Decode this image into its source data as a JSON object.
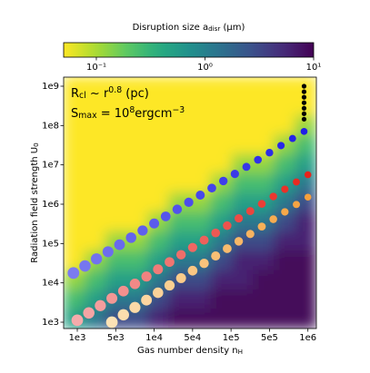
{
  "chart_data": {
    "type": "heatmap",
    "colorbar_label": [
      {
        "text": "Disruption size a"
      },
      {
        "text": "disr",
        "script": "sub"
      },
      {
        "text": " (μm)"
      }
    ],
    "xlabel": [
      {
        "text": "Gas number density n"
      },
      {
        "text": "H",
        "script": "sub"
      }
    ],
    "ylabel": [
      {
        "text": "Radiation field strength U"
      },
      {
        "text": "0",
        "script": "sub"
      }
    ],
    "annotations": [
      [
        {
          "text": "R"
        },
        {
          "text": "cl",
          "script": "sub"
        },
        {
          "text": " ~ r"
        },
        {
          "text": "0.8",
          "script": "sup"
        },
        {
          "text": " (pc)"
        }
      ],
      [
        {
          "text": "S"
        },
        {
          "text": "max",
          "script": "sub"
        },
        {
          "text": " = 10"
        },
        {
          "text": "8",
          "script": "sup"
        },
        {
          "text": "ergcm"
        },
        {
          "text": "−3",
          "script": "sup"
        }
      ]
    ],
    "colormap": "viridis_r",
    "clim": [
      0.05,
      10
    ],
    "cticks": [
      {
        "value": 0.1,
        "label": "10⁻¹"
      },
      {
        "value": 1,
        "label": "10⁰"
      },
      {
        "value": 10,
        "label": "10¹"
      }
    ],
    "xlim": [
      -0.355,
      6.22
    ],
    "xticks": [
      {
        "value": 0,
        "label": "1e3"
      },
      {
        "value": 1,
        "label": "5e3"
      },
      {
        "value": 2,
        "label": "1e4"
      },
      {
        "value": 3,
        "label": "5e4"
      },
      {
        "value": 4,
        "label": "1e5"
      },
      {
        "value": 5,
        "label": "5e5"
      },
      {
        "value": 6,
        "label": "1e6"
      }
    ],
    "ylog": true,
    "ylim": [
      690,
      1700000000.0
    ],
    "yticks": [
      {
        "value": 1000,
        "label": "1e3"
      },
      {
        "value": 10000,
        "label": "1e4"
      },
      {
        "value": 100000,
        "label": "1e5"
      },
      {
        "value": 1000000,
        "label": "1e6"
      },
      {
        "value": 10000000,
        "label": "1e7"
      },
      {
        "value": 100000000,
        "label": "1e8"
      },
      {
        "value": 1000000000,
        "label": "1e9"
      }
    ],
    "heatmap": {
      "z": [
        [
          0.05,
          0.05,
          0.05,
          0.05,
          0.05,
          0.05,
          0.05,
          0.05,
          0.05,
          0.05,
          0.05,
          0.05
        ],
        [
          0.05,
          0.05,
          0.05,
          0.05,
          0.05,
          0.05,
          0.05,
          0.05,
          0.05,
          0.05,
          0.05,
          0.05
        ],
        [
          0.05,
          0.05,
          0.05,
          0.05,
          0.05,
          0.05,
          0.05,
          0.05,
          0.05,
          0.05,
          0.05,
          0.12
        ],
        [
          0.05,
          0.05,
          0.05,
          0.05,
          0.05,
          0.05,
          0.05,
          0.05,
          0.05,
          0.05,
          0.12,
          0.25
        ],
        [
          0.05,
          0.05,
          0.05,
          0.05,
          0.05,
          0.05,
          0.05,
          0.05,
          0.12,
          0.12,
          0.25,
          0.5
        ],
        [
          0.05,
          0.05,
          0.05,
          0.05,
          0.05,
          0.05,
          0.05,
          0.12,
          0.25,
          0.25,
          0.5,
          1.2
        ],
        [
          0.05,
          0.05,
          0.05,
          0.05,
          0.05,
          0.12,
          0.12,
          0.25,
          0.5,
          0.5,
          1.2,
          3
        ],
        [
          0.05,
          0.05,
          0.05,
          0.05,
          0.12,
          0.25,
          0.25,
          0.5,
          1.2,
          1.2,
          3,
          6
        ],
        [
          0.05,
          0.05,
          0.12,
          0.12,
          0.25,
          0.5,
          0.5,
          1.2,
          3,
          3,
          6,
          6
        ],
        [
          0.05,
          0.12,
          0.25,
          0.25,
          0.5,
          1.2,
          1.2,
          3,
          6,
          6,
          9,
          9
        ],
        [
          0.12,
          0.25,
          0.5,
          0.5,
          1.2,
          3,
          3,
          6,
          6,
          9,
          9,
          9
        ],
        [
          0.25,
          0.5,
          1.2,
          1.2,
          3,
          6,
          6,
          9,
          9,
          9,
          9,
          9
        ],
        [
          0.5,
          1.2,
          3,
          3,
          6,
          9,
          9,
          9,
          9,
          9,
          9,
          9
        ]
      ]
    },
    "series": [
      {
        "color_start": "#7b7bef",
        "color": "#1f1fe6",
        "x": [
          -0.1,
          0.2,
          0.5,
          0.8,
          1.1,
          1.4,
          1.7,
          2.0,
          2.3,
          2.6,
          2.9,
          3.2,
          3.5,
          3.8,
          4.1,
          4.4,
          4.7,
          5.0,
          5.3,
          5.6,
          5.9
        ],
        "values": [
          17800.0,
          26900.0,
          40700.0,
          61700.0,
          93300.0,
          141000.0,
          214000.0,
          324000.0,
          490000.0,
          741000.0,
          1120000.0,
          1700000.0,
          2570000.0,
          3890000.0,
          5890000.0,
          8910000.0,
          13500000.0,
          20400000.0,
          30900000.0,
          46800000.0,
          70800000.0
        ]
      },
      {
        "color_start": "#f5abab",
        "color": "#e8231a",
        "x": [
          0.0,
          0.3,
          0.6,
          0.9,
          1.2,
          1.5,
          1.8,
          2.1,
          2.4,
          2.7,
          3.0,
          3.3,
          3.6,
          3.9,
          4.2,
          4.5,
          4.8,
          5.1,
          5.4,
          5.7,
          6.0
        ],
        "values": [
          1120.0,
          1720.0,
          2630.0,
          4030.0,
          6170.0,
          9440.0,
          14500.0,
          22100.0,
          33900.0,
          51900.0,
          79400.0,
          122000.0,
          186000.0,
          285000.0,
          437000.0,
          668000.0,
          1020000.0,
          1570000.0,
          2400000.0,
          3670000.0,
          5620000.0
        ]
      },
      {
        "color_start": "#fde2b5",
        "color": "#f5a03c",
        "x": [
          0.9,
          1.2,
          1.5,
          1.8,
          2.1,
          2.4,
          2.7,
          3.0,
          3.3,
          3.6,
          3.9,
          4.2,
          4.5,
          4.8,
          5.1,
          5.4,
          5.7,
          6.0
        ],
        "values": [
          1000.0,
          1540.0,
          2370.0,
          3640.0,
          5600.0,
          8610.0,
          13200.0,
          20400.0,
          31300.0,
          48200.0,
          74100.0,
          114000.0,
          175000.0,
          270000.0,
          415000.0,
          638000.0,
          982000.0,
          1510000.0
        ]
      },
      {
        "color_start": "#000000",
        "color": "#000000",
        "x": [
          5.9,
          5.9,
          5.9,
          5.9,
          5.9,
          5.9,
          5.9
        ],
        "values": [
          1000000000.0,
          724000000.0,
          525000000.0,
          380000000.0,
          275000000.0,
          200000000.0,
          145000000.0
        ]
      }
    ]
  }
}
